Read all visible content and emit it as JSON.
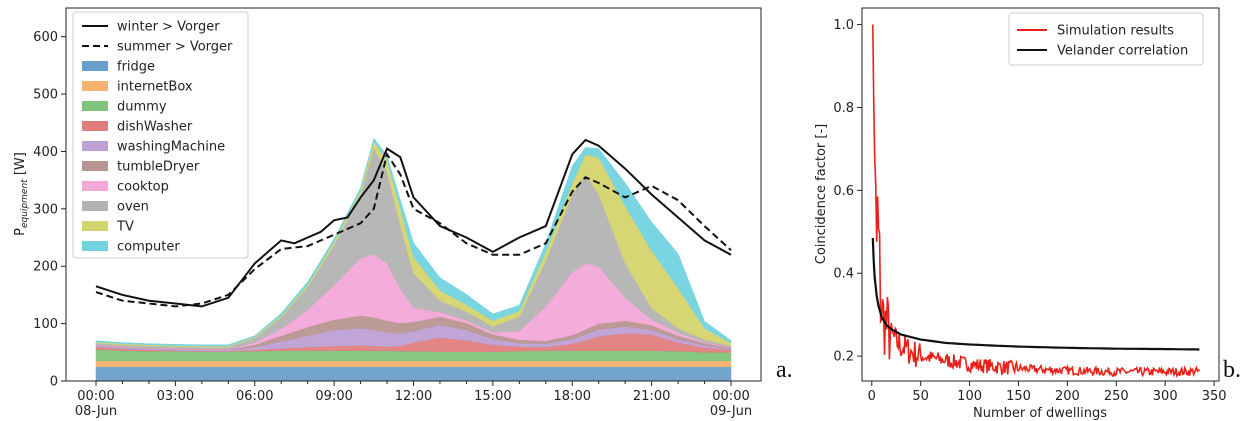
{
  "chart_data": [
    {
      "type": "area",
      "panel_label": "a.",
      "ylabel_base": "P",
      "ylabel_sub": "equipment",
      "ylabel_unit": " [W]",
      "ylim": [
        0,
        650
      ],
      "xlim": [
        0,
        24
      ],
      "y_ticks": [
        0,
        100,
        200,
        300,
        400,
        500,
        600
      ],
      "x_ticks": [
        {
          "x": 0,
          "l1": "00:00",
          "l2": "08-Jun"
        },
        {
          "x": 3,
          "l1": "03:00",
          "l2": ""
        },
        {
          "x": 6,
          "l1": "06:00",
          "l2": ""
        },
        {
          "x": 9,
          "l1": "09:00",
          "l2": ""
        },
        {
          "x": 12,
          "l1": "12:00",
          "l2": ""
        },
        {
          "x": 15,
          "l1": "15:00",
          "l2": ""
        },
        {
          "x": 18,
          "l1": "18:00",
          "l2": ""
        },
        {
          "x": 21,
          "l1": "21:00",
          "l2": ""
        },
        {
          "x": 24,
          "l1": "00:00",
          "l2": "09-Jun"
        }
      ],
      "legend_position": "top-left",
      "x": [
        0,
        1,
        2,
        3,
        4,
        5,
        6,
        7,
        8,
        9,
        10,
        10.5,
        11,
        11.5,
        12,
        13,
        14,
        15,
        16,
        17,
        18,
        18.5,
        19,
        20,
        21,
        22,
        23,
        24
      ],
      "stacked_series": [
        {
          "name": "fridge",
          "color": "#6a9fcb",
          "values": [
            25,
            25,
            25,
            25,
            25,
            25,
            25,
            25,
            25,
            25,
            25,
            25,
            25,
            25,
            25,
            25,
            25,
            25,
            25,
            25,
            25,
            25,
            25,
            25,
            25,
            25,
            25,
            25
          ]
        },
        {
          "name": "internetBox",
          "color": "#f9b26e",
          "values": [
            10,
            10,
            10,
            10,
            10,
            10,
            10,
            10,
            10,
            10,
            10,
            10,
            10,
            10,
            10,
            10,
            10,
            10,
            10,
            10,
            10,
            10,
            10,
            10,
            10,
            10,
            10,
            10
          ]
        },
        {
          "name": "dummy",
          "color": "#7fc47a",
          "values": [
            20,
            18,
            17,
            17,
            16,
            16,
            17,
            18,
            18,
            18,
            18,
            18,
            18,
            17,
            17,
            16,
            16,
            16,
            17,
            18,
            18,
            18,
            18,
            18,
            18,
            17,
            15,
            15
          ]
        },
        {
          "name": "dishWasher",
          "color": "#e07e7e",
          "values": [
            4,
            3,
            2,
            1,
            1,
            1,
            2,
            4,
            6,
            8,
            9,
            8,
            7,
            9,
            15,
            25,
            20,
            12,
            8,
            6,
            12,
            18,
            25,
            30,
            28,
            15,
            8,
            4
          ]
        },
        {
          "name": "washingMachine",
          "color": "#bea0d4",
          "values": [
            2,
            2,
            2,
            2,
            2,
            2,
            5,
            12,
            20,
            28,
            30,
            28,
            25,
            22,
            20,
            22,
            18,
            10,
            6,
            6,
            8,
            10,
            12,
            12,
            8,
            6,
            4,
            2
          ]
        },
        {
          "name": "tumbleDryer",
          "color": "#b89590",
          "values": [
            1,
            1,
            1,
            1,
            1,
            1,
            4,
            10,
            15,
            18,
            22,
            22,
            20,
            18,
            16,
            14,
            12,
            8,
            6,
            5,
            7,
            9,
            10,
            10,
            8,
            6,
            4,
            2
          ]
        },
        {
          "name": "cooktop",
          "color": "#f3a8d8",
          "values": [
            1,
            1,
            1,
            1,
            1,
            1,
            4,
            12,
            30,
            60,
            100,
            110,
            100,
            60,
            25,
            8,
            5,
            4,
            15,
            60,
            110,
            115,
            100,
            40,
            10,
            5,
            2,
            1
          ]
        },
        {
          "name": "oven",
          "color": "#b3b3b3",
          "values": [
            3,
            3,
            3,
            3,
            3,
            3,
            8,
            20,
            40,
            70,
            110,
            185,
            160,
            110,
            60,
            20,
            15,
            10,
            25,
            80,
            135,
            155,
            125,
            60,
            20,
            8,
            4,
            2
          ]
        },
        {
          "name": "TV",
          "color": "#d4d46e",
          "values": [
            2,
            2,
            2,
            2,
            2,
            2,
            2,
            3,
            4,
            6,
            8,
            12,
            20,
            30,
            28,
            18,
            12,
            10,
            10,
            15,
            20,
            35,
            65,
            100,
            100,
            70,
            20,
            5
          ]
        },
        {
          "name": "computer",
          "color": "#72d3e0",
          "values": [
            2,
            2,
            2,
            2,
            2,
            2,
            2,
            4,
            5,
            5,
            5,
            5,
            8,
            15,
            25,
            22,
            18,
            12,
            10,
            15,
            30,
            12,
            15,
            40,
            50,
            60,
            12,
            5
          ]
        }
      ],
      "lines": [
        {
          "name": "winter > Vorger",
          "style": "solid",
          "color": "#111111",
          "x": [
            0,
            1,
            2,
            3,
            4,
            5,
            6,
            6.5,
            7,
            7.5,
            8,
            8.5,
            9,
            9.5,
            10,
            10.5,
            11,
            11.5,
            12,
            13,
            14,
            15,
            16,
            17,
            18,
            18.5,
            19,
            20,
            21,
            22,
            23,
            24
          ],
          "values": [
            165,
            150,
            140,
            135,
            130,
            145,
            205,
            225,
            245,
            240,
            250,
            260,
            280,
            285,
            320,
            350,
            405,
            390,
            320,
            270,
            250,
            225,
            250,
            270,
            395,
            420,
            410,
            370,
            325,
            285,
            245,
            220
          ]
        },
        {
          "name": "summer > Vorger",
          "style": "dashed",
          "color": "#111111",
          "x": [
            0,
            1,
            2,
            3,
            4,
            5,
            6,
            7,
            8,
            9,
            10,
            10.5,
            11,
            11.5,
            12,
            13,
            14,
            15,
            16,
            17,
            17.5,
            18,
            18.5,
            19,
            20,
            21,
            22,
            23,
            24
          ],
          "values": [
            155,
            140,
            135,
            130,
            135,
            150,
            195,
            230,
            235,
            255,
            275,
            300,
            395,
            360,
            300,
            275,
            240,
            220,
            220,
            240,
            285,
            330,
            355,
            345,
            320,
            340,
            315,
            270,
            228
          ]
        }
      ]
    },
    {
      "type": "line",
      "panel_label": "b.",
      "xlabel": "Number of dwellings",
      "ylabel": "Coincidence factor [-]",
      "xlim": [
        -10,
        355
      ],
      "ylim": [
        0.14,
        1.04
      ],
      "x_ticks": [
        0,
        50,
        100,
        150,
        200,
        250,
        300,
        350
      ],
      "y_ticks": [
        0.2,
        0.4,
        0.6,
        0.8,
        1.0
      ],
      "legend_position": "top-right",
      "series": [
        {
          "name": "Simulation results",
          "color": "#e8221b",
          "style": "noisy",
          "x": [
            1,
            2,
            3,
            4,
            5,
            6,
            7,
            8,
            9,
            10,
            12,
            15,
            18,
            20,
            25,
            30,
            40,
            50,
            75,
            100,
            150,
            200,
            250,
            300,
            335
          ],
          "values": [
            1.0,
            0.82,
            0.68,
            0.55,
            0.47,
            0.42,
            0.38,
            0.35,
            0.33,
            0.31,
            0.29,
            0.27,
            0.26,
            0.25,
            0.235,
            0.225,
            0.21,
            0.2,
            0.19,
            0.18,
            0.17,
            0.165,
            0.162,
            0.162,
            0.163
          ]
        },
        {
          "name": "Velander correlation",
          "color": "#111111",
          "style": "solid",
          "x": [
            1,
            2,
            3,
            5,
            7,
            10,
            15,
            20,
            30,
            50,
            75,
            100,
            150,
            200,
            250,
            300,
            335
          ],
          "values": [
            0.485,
            0.43,
            0.39,
            0.345,
            0.32,
            0.295,
            0.275,
            0.265,
            0.252,
            0.24,
            0.232,
            0.228,
            0.223,
            0.22,
            0.218,
            0.217,
            0.216
          ]
        }
      ]
    }
  ]
}
